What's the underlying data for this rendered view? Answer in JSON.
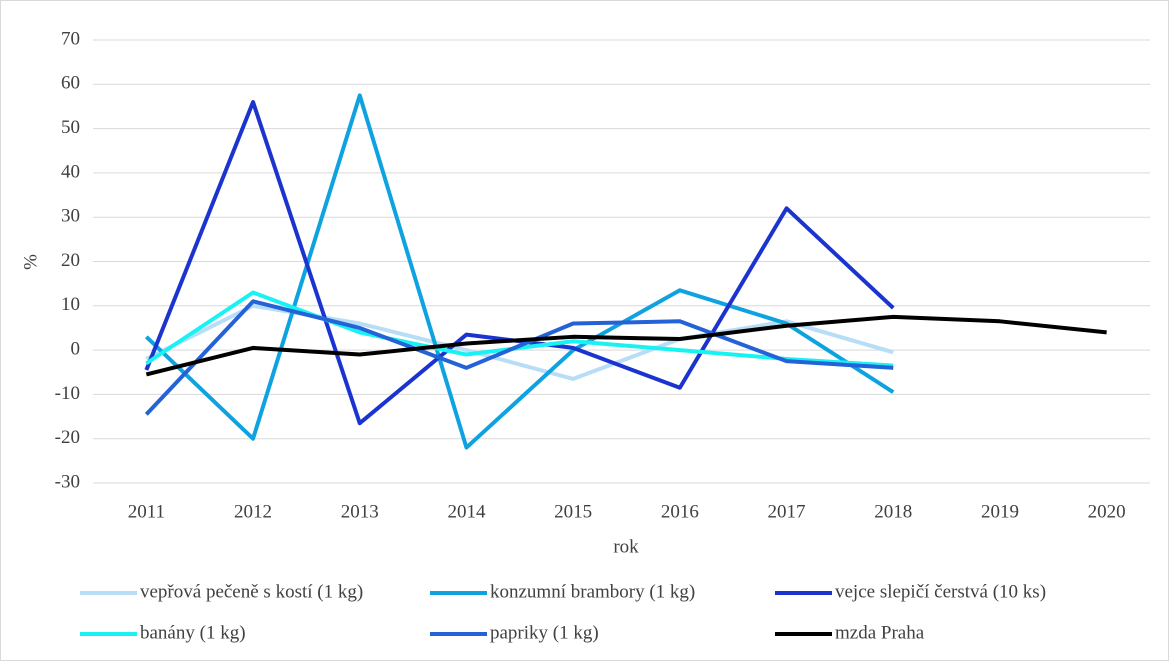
{
  "chart_data": {
    "type": "line",
    "categories": [
      "2011",
      "2012",
      "2013",
      "2014",
      "2015",
      "2016",
      "2017",
      "2018",
      "2019",
      "2020"
    ],
    "series": [
      {
        "name": "vepřová pečeně s kostí (1 kg)",
        "color": "#b7ddf7",
        "values": [
          -2,
          10,
          6,
          0,
          -6.5,
          2.5,
          6.5,
          -0.5,
          null,
          null
        ]
      },
      {
        "name": "konzumní brambory (1 kg)",
        "color": "#0ea3e0",
        "values": [
          3,
          -20,
          57.5,
          -22,
          0,
          13.5,
          6,
          -9.5,
          null,
          null
        ]
      },
      {
        "name": "vejce slepičí čerstvá (10 ks)",
        "color": "#1c34cf",
        "values": [
          -4.5,
          56,
          -16.5,
          3.5,
          0.5,
          -8.5,
          32,
          9.5,
          null,
          null
        ]
      },
      {
        "name": "banány (1 kg)",
        "color": "#19f2f2",
        "values": [
          -3,
          13,
          4,
          -1,
          2,
          0,
          -2,
          -3.5,
          null,
          null
        ]
      },
      {
        "name": "papriky (1 kg)",
        "color": "#2462d8",
        "values": [
          -14.5,
          11,
          5,
          -4,
          6,
          6.5,
          -2.5,
          -4,
          null,
          null
        ]
      },
      {
        "name": "mzda Praha",
        "color": "#000000",
        "values": [
          -5.5,
          0.5,
          -1,
          1.5,
          3,
          2.5,
          5.5,
          7.5,
          6.5,
          4
        ]
      }
    ],
    "ylabel": "%",
    "xlabel": "rok",
    "ylim": [
      -30,
      70
    ],
    "yticks": [
      -30,
      -20,
      -10,
      0,
      10,
      20,
      30,
      40,
      50,
      60,
      70
    ],
    "grid": true,
    "legend": "bottom"
  }
}
